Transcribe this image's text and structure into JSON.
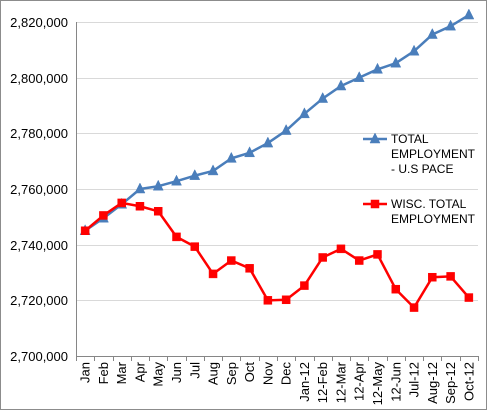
{
  "chart_data": {
    "type": "line",
    "title": "",
    "xlabel": "",
    "ylabel": "",
    "categories": [
      "Jan",
      "Feb",
      "Mar",
      "Apr",
      "May",
      "Jun",
      "Jul",
      "Aug",
      "Sep",
      "Oct",
      "Nov",
      "Dec",
      "Jan-12",
      "12-Feb",
      "12-Mar",
      "12-Apr",
      "12-May",
      "12-Jun",
      "Jul-12",
      "Aug-12",
      "Sep-12",
      "Oct-12"
    ],
    "ylim": [
      2700000,
      2820000
    ],
    "y_ticks": [
      {
        "value": 2700000,
        "label": "2,700,000"
      },
      {
        "value": 2720000,
        "label": "2,720,000"
      },
      {
        "value": 2740000,
        "label": "2,740,000"
      },
      {
        "value": 2760000,
        "label": "2,760,000"
      },
      {
        "value": 2780000,
        "label": "2,780,000"
      },
      {
        "value": 2800000,
        "label": "2,800,000"
      },
      {
        "value": 2820000,
        "label": "2,820,000"
      }
    ],
    "grid": true,
    "legend_position": "right",
    "series": [
      {
        "name": "TOTAL EMPLOYMENT - U.S PACE",
        "legend_lines": [
          "TOTAL",
          "EMPLOYMENT",
          "- U.S PACE"
        ],
        "color": "#4a7ebb",
        "marker": "triangle",
        "values": [
          2745000,
          2749500,
          2754500,
          2760000,
          2761000,
          2762800,
          2764800,
          2766500,
          2771000,
          2773000,
          2776500,
          2781000,
          2787000,
          2792500,
          2797000,
          2800000,
          2803000,
          2805200,
          2809500,
          2815500,
          2818500,
          2822500
        ]
      },
      {
        "name": "WISC. TOTAL EMPLOYMENT",
        "legend_lines": [
          "WISC. TOTAL",
          "EMPLOYMENT"
        ],
        "color": "#ff0000",
        "marker": "square",
        "values": [
          2745000,
          2750500,
          2755000,
          2753800,
          2752000,
          2742800,
          2739300,
          2729500,
          2734300,
          2731500,
          2720000,
          2720200,
          2725300,
          2735400,
          2738500,
          2734300,
          2736500,
          2724000,
          2717400,
          2728300,
          2728600,
          2721000
        ]
      }
    ]
  }
}
